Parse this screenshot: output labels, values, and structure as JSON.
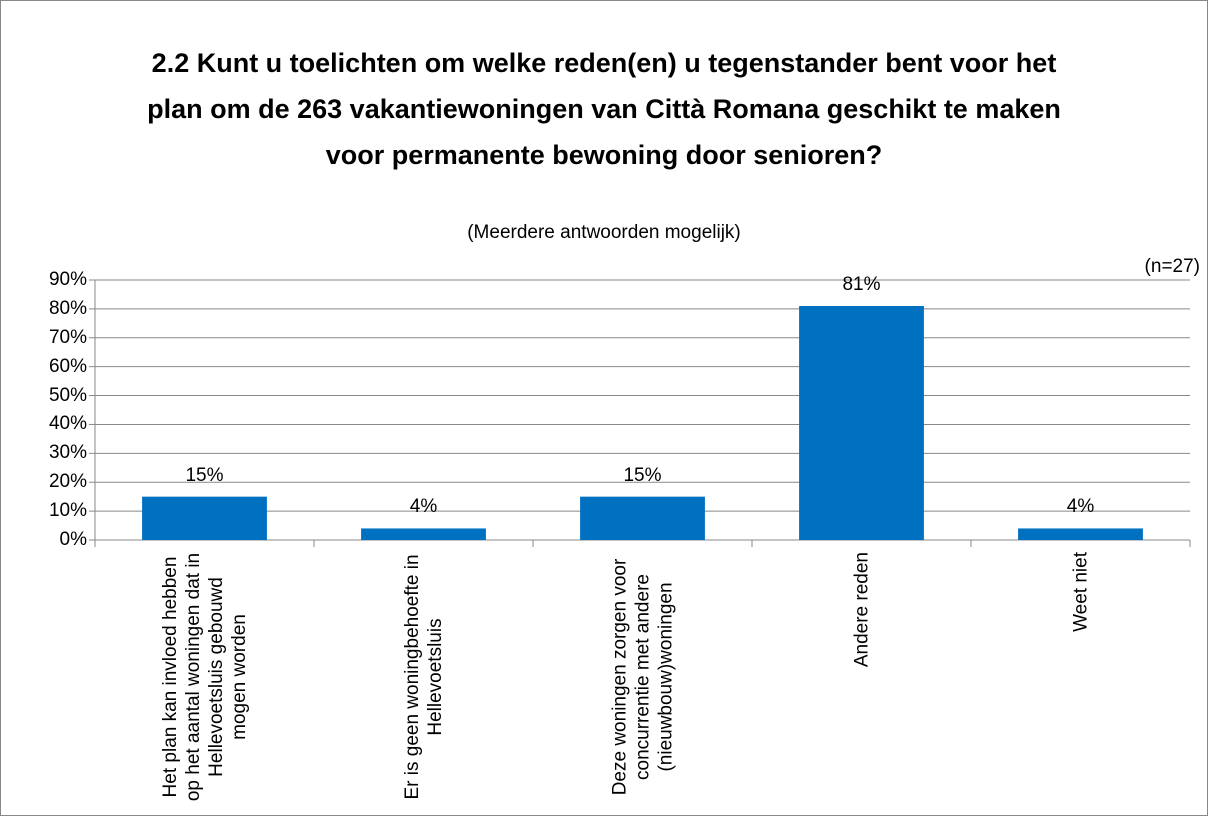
{
  "chart_data": {
    "type": "bar",
    "title": "2.2 Kunt u toelichten om welke reden(en) u tegenstander bent voor het plan om de 263 vakantiewoningen van Città Romana geschikt te maken voor permanente bewoning door senioren?",
    "subtitle": "(Meerdere antwoorden mogelijk)",
    "annotation": "(n=27)",
    "categories": [
      "Het plan kan invloed hebben op het aantal woningen dat in Hellevoetsluis gebouwd mogen worden",
      "Er is geen woningbehoefte in Hellevoetsluis",
      "Deze woningen zorgen voor concurrentie met andere (nieuwbouw)woningen",
      "Andere reden",
      "Weet niet"
    ],
    "values": [
      15,
      4,
      15,
      81,
      4
    ],
    "value_labels": [
      "15%",
      "4%",
      "15%",
      "81%",
      "4%"
    ],
    "color": "#0070c0",
    "ylim": [
      0,
      90
    ],
    "yticks": [
      {
        "value": 0,
        "label": "0%"
      },
      {
        "value": 10,
        "label": "10%"
      },
      {
        "value": 20,
        "label": "20%"
      },
      {
        "value": 30,
        "label": "30%"
      },
      {
        "value": 40,
        "label": "40%"
      },
      {
        "value": 50,
        "label": "50%"
      },
      {
        "value": 60,
        "label": "60%"
      },
      {
        "value": 70,
        "label": "70%"
      },
      {
        "value": 80,
        "label": "80%"
      },
      {
        "value": 90,
        "label": "90%"
      }
    ],
    "grid": true
  }
}
